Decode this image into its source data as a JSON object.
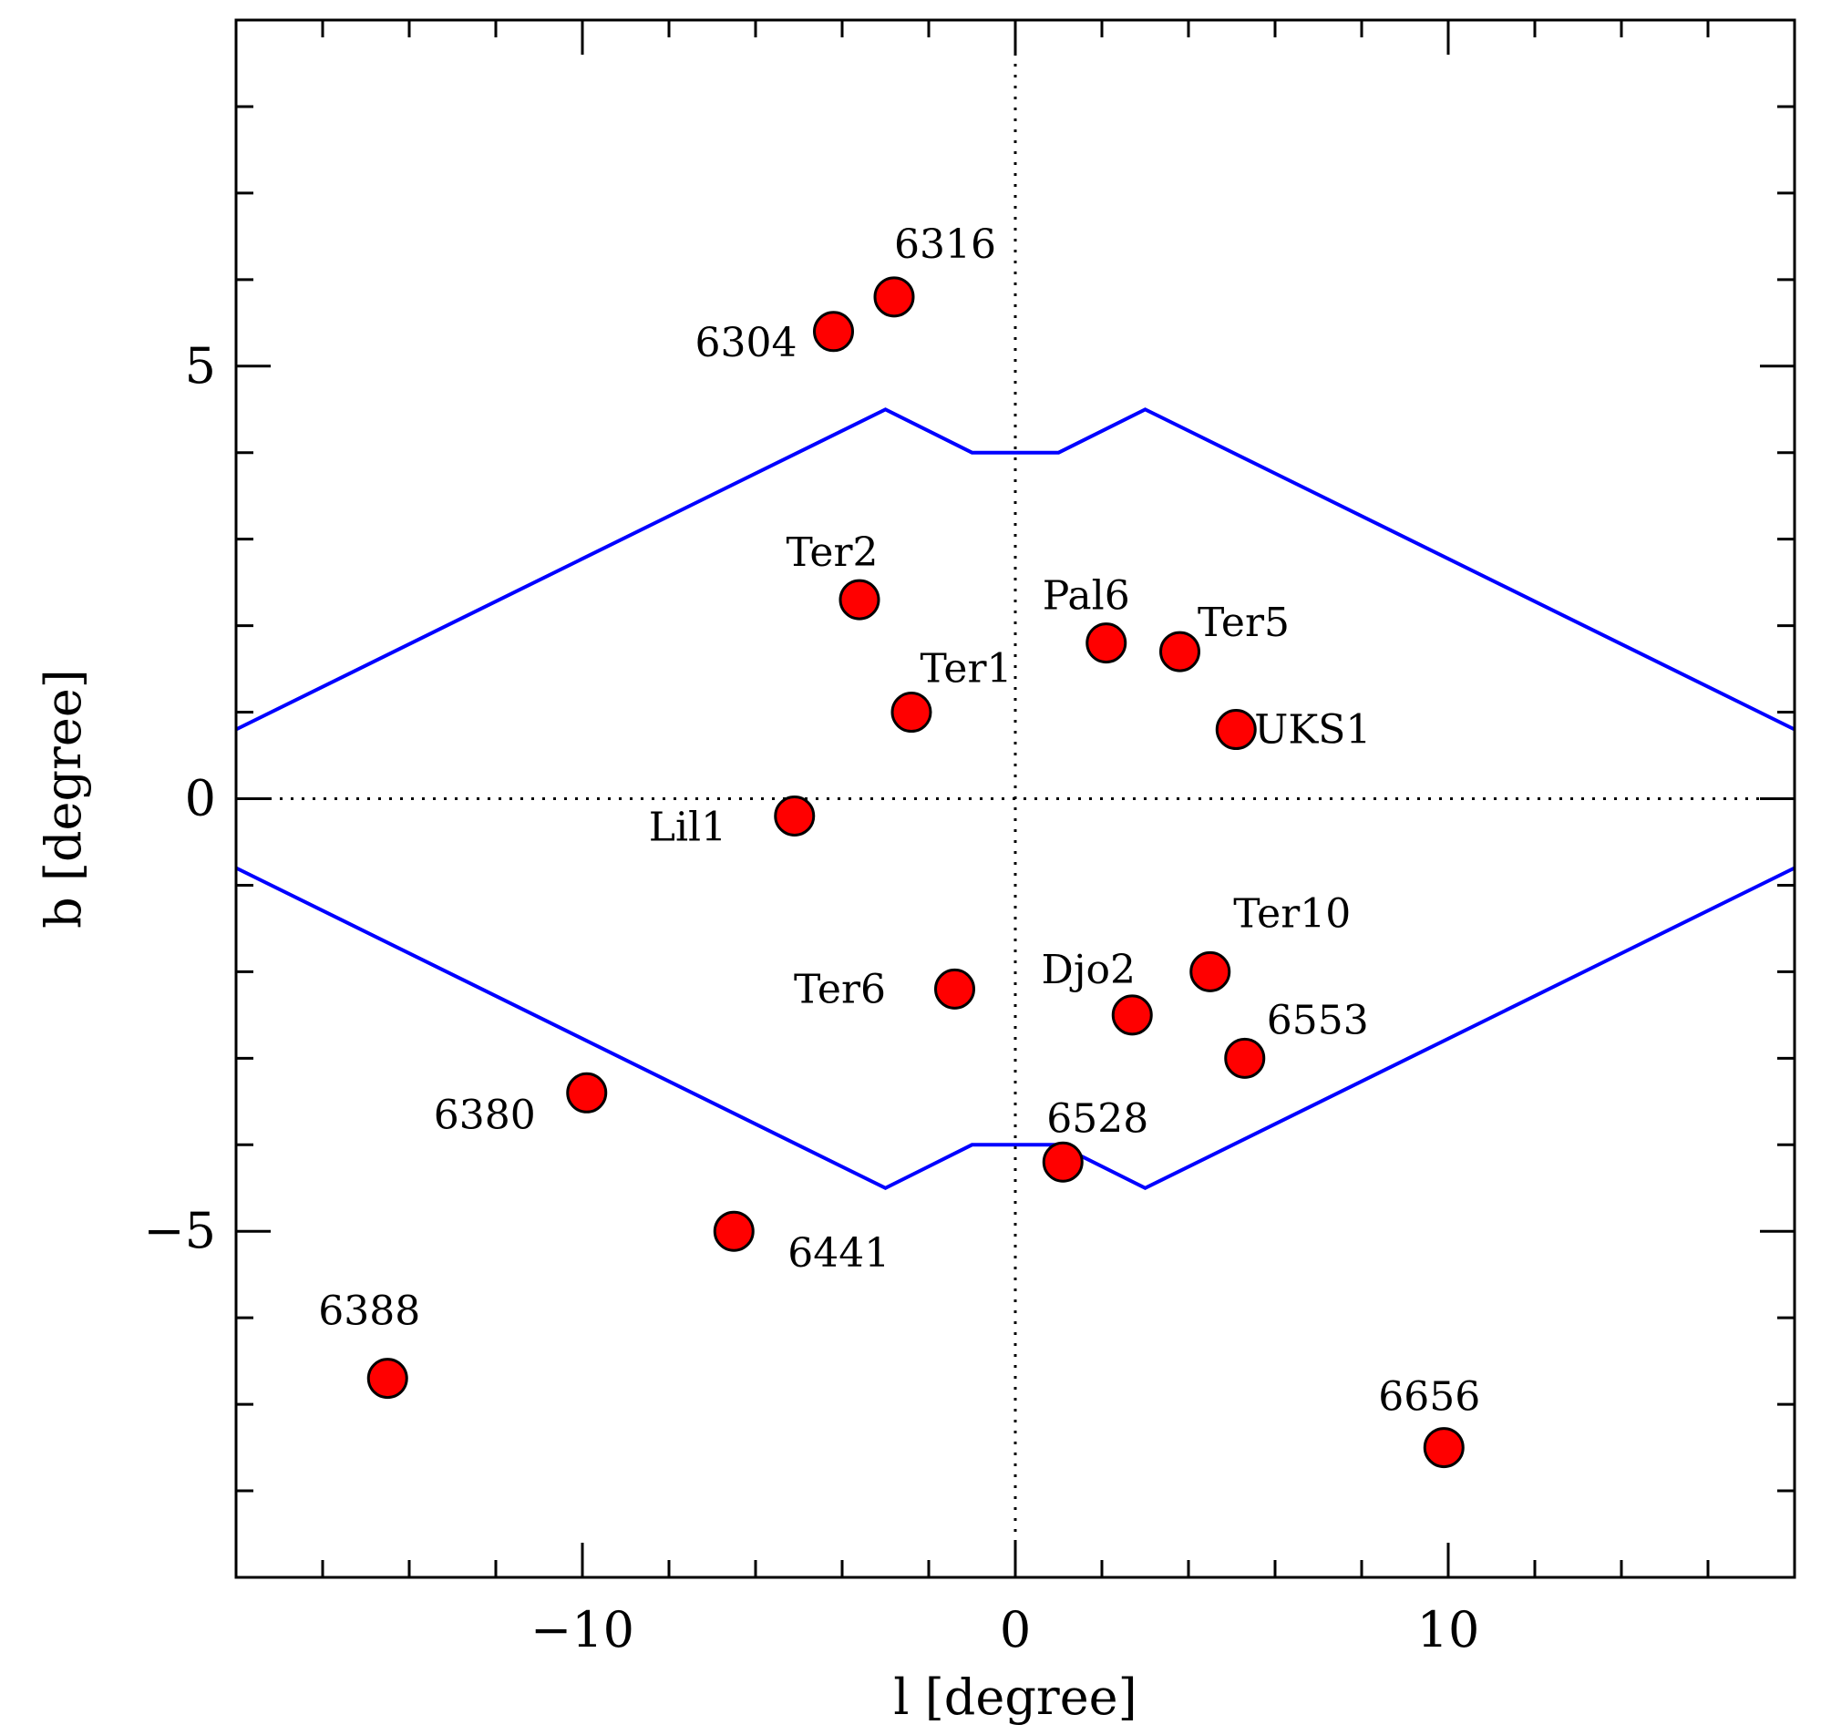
{
  "chart_data": {
    "type": "scatter",
    "title": "",
    "xlabel": "l [degree]",
    "ylabel": "b [degree]",
    "xlim": [
      -18,
      18
    ],
    "ylim": [
      -9,
      9
    ],
    "x_ticks": [
      -10,
      0,
      10
    ],
    "y_ticks": [
      -5,
      0,
      5
    ],
    "x_tick_labels": [
      "−10",
      "0",
      "10"
    ],
    "y_tick_labels": [
      "−5",
      "0",
      "5"
    ],
    "grid": false,
    "zero_lines": "dotted",
    "marker_color": "#ff0000",
    "boundary_color": "#0000ff",
    "points": [
      {
        "label": "6316",
        "l": -2.8,
        "b": 5.8
      },
      {
        "label": "6304",
        "l": -4.2,
        "b": 5.4
      },
      {
        "label": "Ter2",
        "l": -3.6,
        "b": 2.3
      },
      {
        "label": "Pal6",
        "l": 2.1,
        "b": 1.8
      },
      {
        "label": "Ter5",
        "l": 3.8,
        "b": 1.7
      },
      {
        "label": "Ter1",
        "l": -2.4,
        "b": 1.0
      },
      {
        "label": "UKS1",
        "l": 5.1,
        "b": 0.8
      },
      {
        "label": "Lil1",
        "l": -5.1,
        "b": -0.2
      },
      {
        "label": "Ter10",
        "l": 4.5,
        "b": -2.0
      },
      {
        "label": "Ter6",
        "l": -1.4,
        "b": -2.2
      },
      {
        "label": "Djo2",
        "l": 2.7,
        "b": -2.5
      },
      {
        "label": "6553",
        "l": 5.3,
        "b": -3.0
      },
      {
        "label": "6380",
        "l": -9.9,
        "b": -3.4
      },
      {
        "label": "6528",
        "l": 1.1,
        "b": -4.2
      },
      {
        "label": "6441",
        "l": -6.5,
        "b": -5.0
      },
      {
        "label": "6388",
        "l": -14.5,
        "b": -6.7
      },
      {
        "label": "6656",
        "l": 9.9,
        "b": -7.5
      }
    ],
    "boundaries": [
      {
        "l": [
          -18,
          -3,
          -1,
          1,
          3,
          18
        ],
        "b": [
          0.8,
          4.5,
          4.0,
          4.0,
          4.5,
          0.8
        ]
      },
      {
        "l": [
          -18,
          -3,
          -1,
          1,
          3,
          18
        ],
        "b": [
          -0.8,
          -4.5,
          -4.0,
          -4.0,
          -4.5,
          -0.8
        ]
      }
    ]
  }
}
